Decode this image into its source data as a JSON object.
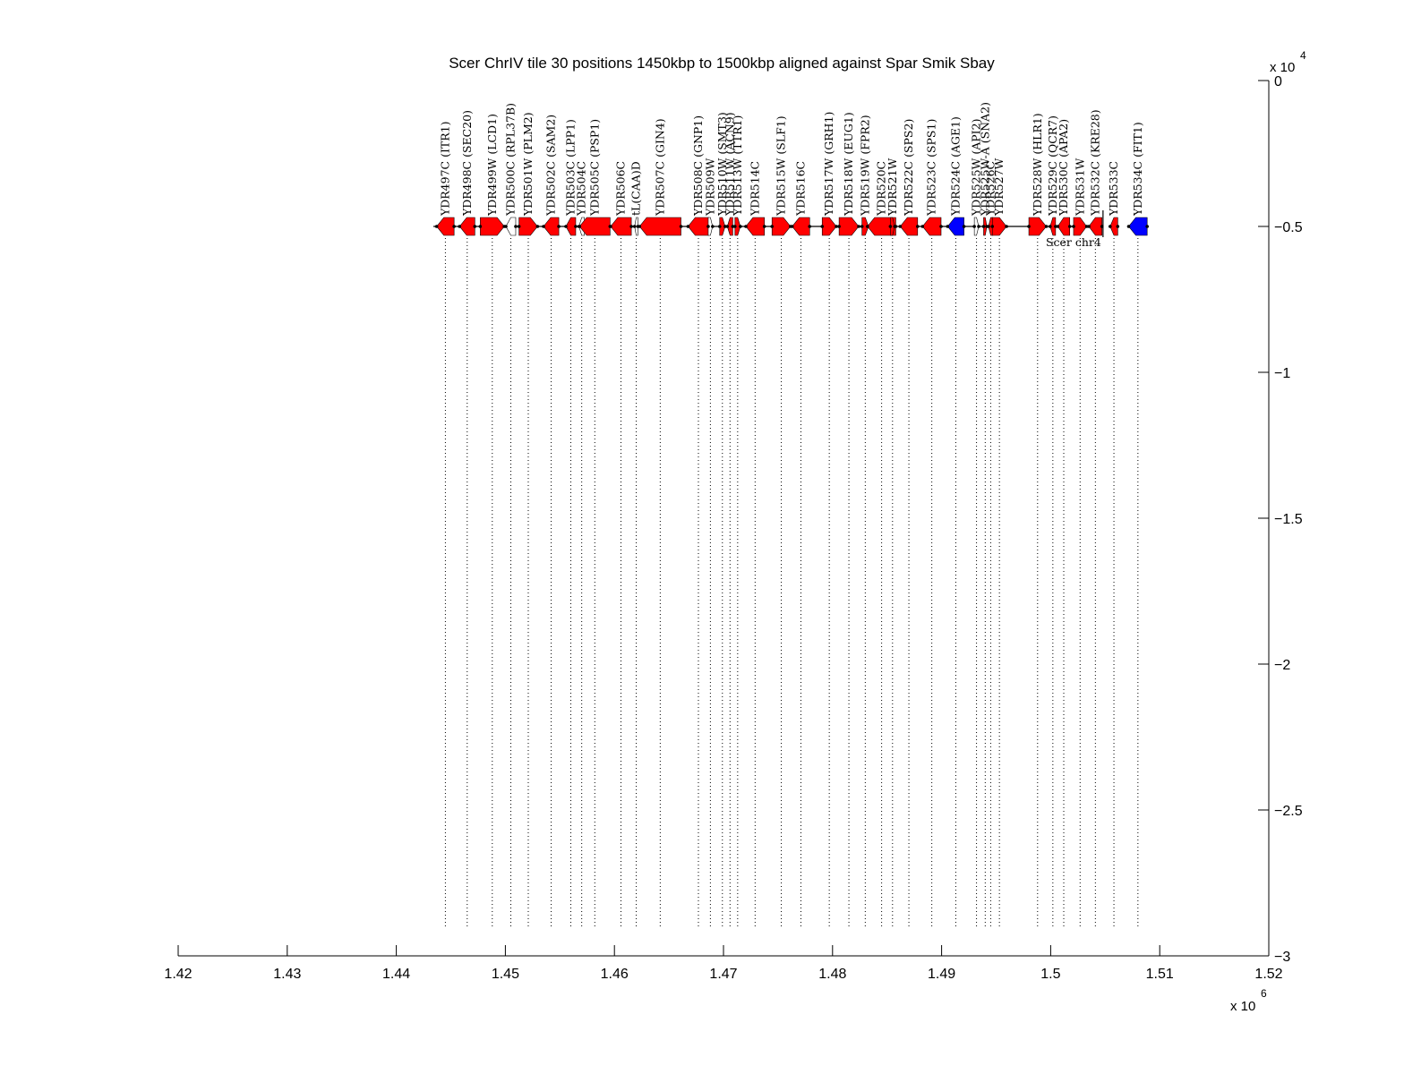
{
  "chart_data": {
    "type": "genome-alignment",
    "title": "Scer ChrIV tile 30 positions 1450kbp to 1500kbp aligned against Spar Smik Sbay",
    "xlabel": "",
    "ylabel": "",
    "xlim": [
      1.42,
      1.52
    ],
    "ylim": [
      -3,
      0
    ],
    "x_exponent_label": "x 10",
    "x_exponent": "6",
    "y_exponent_label": "x 10",
    "y_exponent": "4",
    "xticks": [
      "1.42",
      "1.43",
      "1.44",
      "1.45",
      "1.46",
      "1.47",
      "1.48",
      "1.49",
      "1.5",
      "1.51",
      "1.52"
    ],
    "yticks": [
      "0",
      "−0.5",
      "−1",
      "−1.5",
      "−2",
      "−2.5",
      "−3"
    ],
    "colors": {
      "gene": "#ff0000",
      "blue": "#0000ff",
      "magenta": "#ff00ff",
      "line": "#000000"
    },
    "tracks": [
      {
        "name": "Scer chr4",
        "y": -0.5,
        "range": [
          1.4434,
          1.5048
        ],
        "genes": [
          {
            "label": "YDR497C (ITR1)",
            "x": 1.4445,
            "w": 0.0016,
            "dir": -1,
            "c": "gene"
          },
          {
            "label": "YDR498C (SEC20)",
            "x": 1.4465,
            "w": 0.0014,
            "dir": -1,
            "c": "gene"
          },
          {
            "label": "YDR499W (LCD1)",
            "x": 1.4488,
            "w": 0.0022,
            "dir": 1,
            "c": "gene"
          },
          {
            "label": "YDR500C (RPL37B)",
            "x": 1.4505,
            "w": 0.0009,
            "dir": -1,
            "c": "outline"
          },
          {
            "label": "YDR501W (PLM2)",
            "x": 1.4521,
            "w": 0.0017,
            "dir": 1,
            "c": "gene"
          },
          {
            "label": "YDR502C (SAM2)",
            "x": 1.4542,
            "w": 0.0014,
            "dir": -1,
            "c": "gene"
          },
          {
            "label": "YDR503C (LPP1)",
            "x": 1.456,
            "w": 0.0009,
            "dir": -1,
            "c": "gene"
          },
          {
            "label": "YDR504C",
            "x": 1.457,
            "w": 0.0005,
            "dir": -1,
            "c": "outline"
          },
          {
            "label": "YDR505C (PSP1)",
            "x": 1.4582,
            "w": 0.0028,
            "dir": -1,
            "c": "gene"
          },
          {
            "label": "YDR506C",
            "x": 1.4606,
            "w": 0.0019,
            "dir": -1,
            "c": "gene"
          },
          {
            "label": "tL(CAA)D",
            "x": 1.462,
            "w": 0.0003,
            "dir": -1,
            "c": "outline"
          },
          {
            "label": "YDR507C (GIN4)",
            "x": 1.4642,
            "w": 0.0038,
            "dir": -1,
            "c": "gene"
          },
          {
            "label": "YDR508C (GNP1)",
            "x": 1.4677,
            "w": 0.0019,
            "dir": -1,
            "c": "gene"
          },
          {
            "label": "YDR509W",
            "x": 1.4688,
            "w": 0.0004,
            "dir": 1,
            "c": "outline"
          },
          {
            "label": "YDR510W (SMT3)",
            "x": 1.4699,
            "w": 0.0005,
            "dir": 1,
            "c": "gene"
          },
          {
            "label": "YDR511W (ACN9)",
            "x": 1.4706,
            "w": 0.0005,
            "dir": -1,
            "c": "gene"
          },
          {
            "label": "YDR513W (TTR1)",
            "x": 1.4713,
            "w": 0.0005,
            "dir": 1,
            "c": "gene"
          },
          {
            "label": "YDR514C",
            "x": 1.4729,
            "w": 0.0017,
            "dir": -1,
            "c": "gene"
          },
          {
            "label": "YDR515W (SLF1)",
            "x": 1.4753,
            "w": 0.0017,
            "dir": 1,
            "c": "gene"
          },
          {
            "label": "YDR516C",
            "x": 1.4771,
            "w": 0.0016,
            "dir": -1,
            "c": "gene"
          },
          {
            "label": "YDR517W (GRH1)",
            "x": 1.4797,
            "w": 0.0013,
            "dir": 1,
            "c": "gene"
          },
          {
            "label": "YDR518W (EUG1)",
            "x": 1.4815,
            "w": 0.0018,
            "dir": 1,
            "c": "gene"
          },
          {
            "label": "YDR519W (FPR2)",
            "x": 1.483,
            "w": 0.0006,
            "dir": 1,
            "c": "gene"
          },
          {
            "label": "YDR520C",
            "x": 1.4845,
            "w": 0.0026,
            "dir": -1,
            "c": "gene"
          },
          {
            "label": "YDR521W",
            "x": 1.4855,
            "w": 0.0004,
            "dir": 1,
            "c": "gene"
          },
          {
            "label": "YDR522C (SPS2)",
            "x": 1.487,
            "w": 0.0016,
            "dir": -1,
            "c": "gene"
          },
          {
            "label": "YDR523C (SPS1)",
            "x": 1.4891,
            "w": 0.0017,
            "dir": -1,
            "c": "gene"
          },
          {
            "label": "YDR524C (AGE1)",
            "x": 1.4913,
            "w": 0.0015,
            "dir": -1,
            "c": "blue"
          },
          {
            "label": "YDR525W (API2)",
            "x": 1.4932,
            "w": 0.0004,
            "dir": 1,
            "c": "outline"
          },
          {
            "label": "YDR525W-A (SNA2)",
            "x": 1.494,
            "w": 0.0003,
            "dir": 1,
            "c": "gene"
          },
          {
            "label": "YDR526C",
            "x": 1.4945,
            "w": 0.0004,
            "dir": -1,
            "c": "gene"
          },
          {
            "label": "YDR527W",
            "x": 1.4953,
            "w": 0.0013,
            "dir": 1,
            "c": "gene"
          },
          {
            "label": "YDR528W (HLR1)",
            "x": 1.4988,
            "w": 0.0016,
            "dir": 1,
            "c": "gene"
          },
          {
            "label": "YDR529C (QCR7)",
            "x": 1.5002,
            "w": 0.0005,
            "dir": -1,
            "c": "gene"
          },
          {
            "label": "YDR530C (APA2)",
            "x": 1.5012,
            "w": 0.0011,
            "dir": -1,
            "c": "gene"
          },
          {
            "label": "YDR531W",
            "x": 1.5027,
            "w": 0.0012,
            "dir": 1,
            "c": "gene"
          },
          {
            "label": "YDR532C (KRE28)",
            "x": 1.5041,
            "w": 0.0012,
            "dir": -1,
            "c": "gene"
          },
          {
            "label": "YDR533C",
            "x": 1.5058,
            "w": 0.0007,
            "dir": -1,
            "c": "gene"
          },
          {
            "label": "YDR534C (FIT1)",
            "x": 1.508,
            "w": 0.0017,
            "dir": -1,
            "c": "blue"
          }
        ]
      }
    ]
  }
}
